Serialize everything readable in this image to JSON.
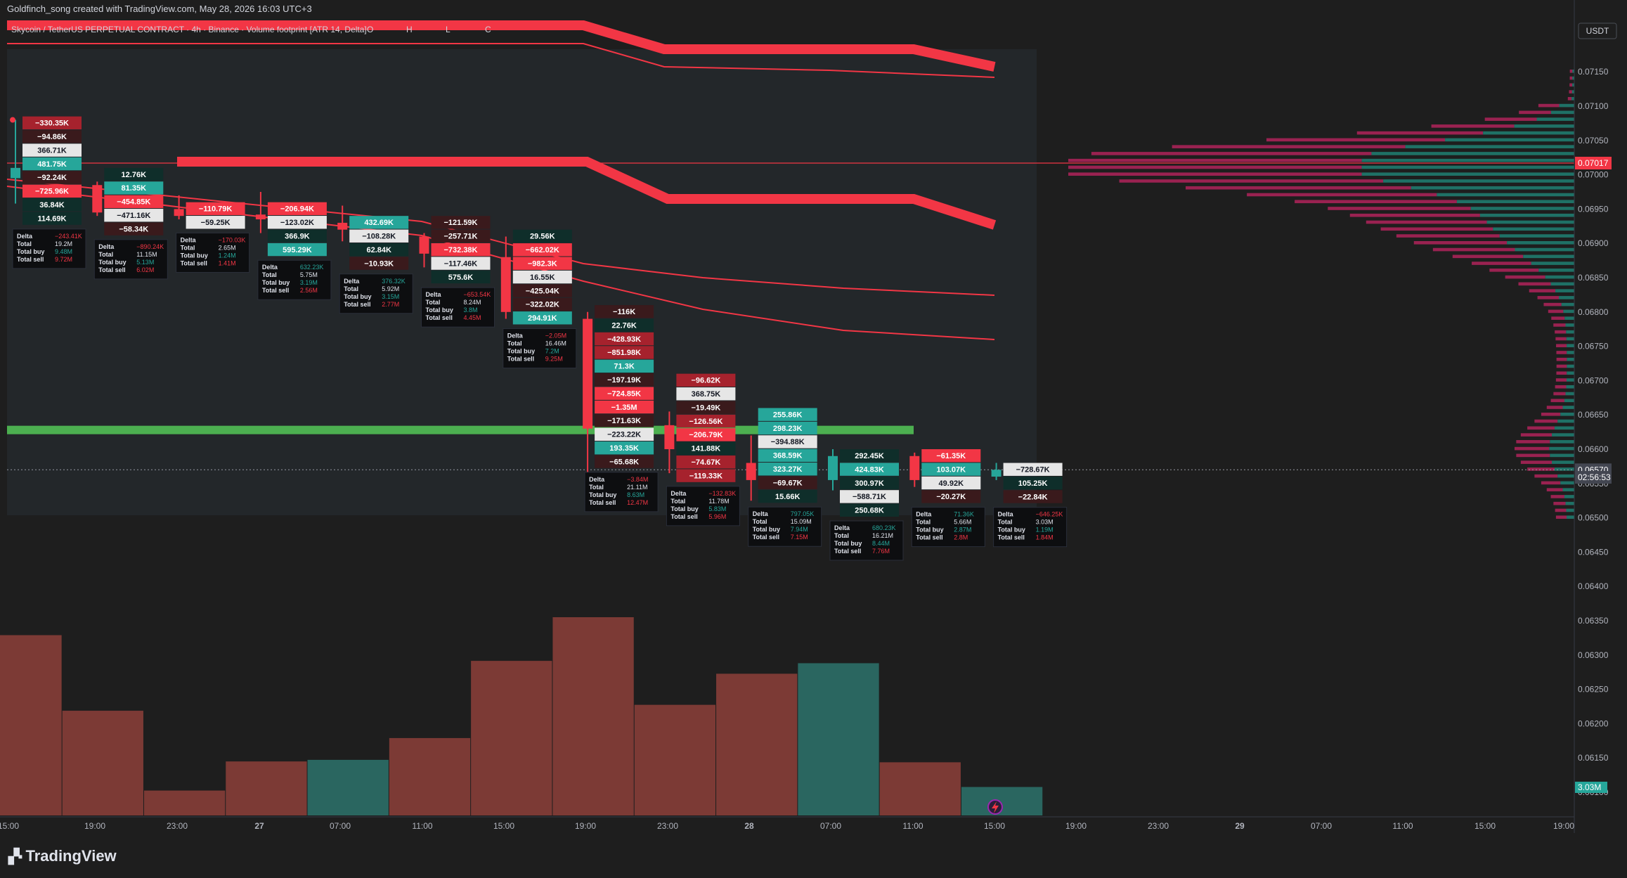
{
  "header": {
    "created_line": "Goldfinch_song created with TradingView.com, May 28, 2026 16:03 UTC+3",
    "legend": "Skycoin / TetherUS PERPETUAL CONTRACT · 4h · Binance · Volume footprint [ATR 14, Delta]",
    "ohlc_letters": [
      "O",
      "H",
      "L",
      "C"
    ],
    "currency": "USDT"
  },
  "logo": {
    "text": "TradingView"
  },
  "colors": {
    "background": "#1e1e1e",
    "bear": "#f23645",
    "bull": "#26a69a",
    "bear_vol": "#7c3a35",
    "bull_vol": "#2a6660",
    "support_zone": "#4caf50",
    "price_badge": "#f23645",
    "last_badge": "#434651"
  },
  "chart_data": {
    "type": "candlestick-footprint",
    "symbol": "Skycoin / TetherUS PERPETUAL CONTRACT",
    "timeframe": "4h",
    "exchange": "Binance",
    "indicator": "Volume footprint [ATR 14, Delta]",
    "y_axis": {
      "ticks": [
        "0.07150",
        "0.07100",
        "0.07050",
        "0.07000",
        "0.06950",
        "0.06900",
        "0.06850",
        "0.06800",
        "0.06750",
        "0.06700",
        "0.06650",
        "0.06600",
        "0.06550",
        "0.06500",
        "0.06450",
        "0.06400",
        "0.06350",
        "0.06300",
        "0.06250",
        "0.06200",
        "0.06150",
        "0.06100"
      ],
      "range": [
        0.06085,
        0.07193
      ]
    },
    "x_axis": {
      "ticks": [
        "15:00",
        "19:00",
        "23:00",
        "27",
        "07:00",
        "11:00",
        "15:00",
        "19:00",
        "23:00",
        "28",
        "07:00",
        "11:00",
        "15:00",
        "19:00",
        "23:00",
        "29",
        "07:00",
        "11:00",
        "15:00",
        "19:00"
      ]
    },
    "price_labels": [
      {
        "text": "0.07017",
        "value": 0.07017,
        "style": "red"
      },
      {
        "text": "0.06570",
        "value": 0.0657,
        "style": "dark"
      },
      {
        "text": "02:56:53",
        "value": 0.06559,
        "style": "dark"
      }
    ],
    "volume_label": "3.03M",
    "candles": [
      {
        "o": 0.06995,
        "h": 0.0708,
        "l": 0.06958,
        "c": 0.0701
      },
      {
        "o": 0.06985,
        "h": 0.0699,
        "l": 0.0694,
        "c": 0.06945
      },
      {
        "o": 0.0695,
        "h": 0.0697,
        "l": 0.06935,
        "c": 0.0694
      },
      {
        "o": 0.06942,
        "h": 0.06975,
        "l": 0.06915,
        "c": 0.06935
      },
      {
        "o": 0.0693,
        "h": 0.06955,
        "l": 0.06903,
        "c": 0.0692
      },
      {
        "o": 0.0691,
        "h": 0.06915,
        "l": 0.06865,
        "c": 0.06885
      },
      {
        "o": 0.0688,
        "h": 0.0691,
        "l": 0.0679,
        "c": 0.068
      },
      {
        "o": 0.0679,
        "h": 0.068,
        "l": 0.0656,
        "c": 0.0663
      },
      {
        "o": 0.06635,
        "h": 0.06655,
        "l": 0.06565,
        "c": 0.066
      },
      {
        "o": 0.0658,
        "h": 0.0662,
        "l": 0.06525,
        "c": 0.06555
      },
      {
        "o": 0.06555,
        "h": 0.066,
        "l": 0.0654,
        "c": 0.0659
      },
      {
        "o": 0.0659,
        "h": 0.06595,
        "l": 0.06545,
        "c": 0.06555
      },
      {
        "o": 0.0656,
        "h": 0.0658,
        "l": 0.06555,
        "c": 0.0657
      }
    ],
    "footprint": [
      {
        "top": 0.07085,
        "rows": [
          {
            "v": "−330.35K",
            "c": "br"
          },
          {
            "v": "−94.86K",
            "c": "dr"
          },
          {
            "v": "366.71K",
            "c": "w"
          },
          {
            "v": "481.75K",
            "c": "g"
          },
          {
            "v": "−92.24K",
            "c": "dr"
          },
          {
            "v": "−725.96K",
            "c": "r"
          },
          {
            "v": "36.84K",
            "c": "dg"
          },
          {
            "v": "114.69K",
            "c": "dg"
          }
        ],
        "stats": {
          "delta": "−243.41K",
          "total": "19.2M",
          "buy": "9.48M",
          "sell": "9.72M"
        },
        "dpos": false
      },
      {
        "top": 0.0701,
        "rows": [
          {
            "v": "12.76K",
            "c": "dg"
          },
          {
            "v": "81.35K",
            "c": "g"
          },
          {
            "v": "−454.85K",
            "c": "r"
          },
          {
            "v": "−471.16K",
            "c": "w"
          },
          {
            "v": "−58.34K",
            "c": "dr"
          }
        ],
        "stats": {
          "delta": "−890.24K",
          "total": "11.15M",
          "buy": "5.13M",
          "sell": "6.02M"
        },
        "dpos": false
      },
      {
        "top": 0.0696,
        "rows": [
          {
            "v": "−110.79K",
            "c": "r"
          },
          {
            "v": "−59.25K",
            "c": "w"
          }
        ],
        "stats": {
          "delta": "−170.03K",
          "total": "2.65M",
          "buy": "1.24M",
          "sell": "1.41M"
        },
        "dpos": false
      },
      {
        "top": 0.0696,
        "rows": [
          {
            "v": "−206.94K",
            "c": "r"
          },
          {
            "v": "−123.02K",
            "c": "w"
          },
          {
            "v": "366.9K",
            "c": "dg"
          },
          {
            "v": "595.29K",
            "c": "g"
          }
        ],
        "stats": {
          "delta": "632.23K",
          "total": "5.75M",
          "buy": "3.19M",
          "sell": "2.56M"
        },
        "dpos": true
      },
      {
        "top": 0.0694,
        "rows": [
          {
            "v": "432.69K",
            "c": "g"
          },
          {
            "v": "−108.28K",
            "c": "w"
          },
          {
            "v": "62.84K",
            "c": "dg"
          },
          {
            "v": "−10.93K",
            "c": "dr"
          }
        ],
        "stats": {
          "delta": "376.32K",
          "total": "5.92M",
          "buy": "3.15M",
          "sell": "2.77M"
        },
        "dpos": true
      },
      {
        "top": 0.0694,
        "rows": [
          {
            "v": "−121.59K",
            "c": "dr"
          },
          {
            "v": "−257.71K",
            "c": "dr"
          },
          {
            "v": "−732.38K",
            "c": "r"
          },
          {
            "v": "−117.46K",
            "c": "w"
          },
          {
            "v": "575.6K",
            "c": "dg"
          }
        ],
        "stats": {
          "delta": "−653.54K",
          "total": "8.24M",
          "buy": "3.8M",
          "sell": "4.45M"
        },
        "dpos": false
      },
      {
        "top": 0.0692,
        "rows": [
          {
            "v": "29.56K",
            "c": "dg"
          },
          {
            "v": "−662.02K",
            "c": "r"
          },
          {
            "v": "−982.3K",
            "c": "r"
          },
          {
            "v": "16.55K",
            "c": "w"
          },
          {
            "v": "−425.04K",
            "c": "dr"
          },
          {
            "v": "−322.02K",
            "c": "dr"
          },
          {
            "v": "294.91K",
            "c": "g"
          }
        ],
        "stats": {
          "delta": "−2.05M",
          "total": "16.46M",
          "buy": "7.2M",
          "sell": "9.25M"
        },
        "dpos": false
      },
      {
        "top": 0.0681,
        "rows": [
          {
            "v": "−116K",
            "c": "dr"
          },
          {
            "v": "22.76K",
            "c": "dg"
          },
          {
            "v": "−428.93K",
            "c": "br"
          },
          {
            "v": "−851.98K",
            "c": "br"
          },
          {
            "v": "71.3K",
            "c": "g"
          },
          {
            "v": "−197.19K",
            "c": "dr"
          },
          {
            "v": "−724.85K",
            "c": "r"
          },
          {
            "v": "−1.35M",
            "c": "r"
          },
          {
            "v": "−171.63K",
            "c": "dr"
          },
          {
            "v": "−223.22K",
            "c": "w"
          },
          {
            "v": "193.35K",
            "c": "g"
          },
          {
            "v": "−65.68K",
            "c": "dr"
          }
        ],
        "stats": {
          "delta": "−3.84M",
          "total": "21.11M",
          "buy": "8.63M",
          "sell": "12.47M"
        },
        "dpos": false
      },
      {
        "top": 0.0671,
        "rows": [
          {
            "v": "−96.62K",
            "c": "br"
          },
          {
            "v": "368.75K",
            "c": "w"
          },
          {
            "v": "−19.49K",
            "c": "dr"
          },
          {
            "v": "−126.56K",
            "c": "br"
          },
          {
            "v": "−206.79K",
            "c": "r"
          },
          {
            "v": "141.88K",
            "c": "dg"
          },
          {
            "v": "−74.67K",
            "c": "br"
          },
          {
            "v": "−119.33K",
            "c": "br"
          }
        ],
        "stats": {
          "delta": "−132.83K",
          "total": "11.78M",
          "buy": "5.83M",
          "sell": "5.96M"
        },
        "dpos": false
      },
      {
        "top": 0.0666,
        "rows": [
          {
            "v": "255.86K",
            "c": "g"
          },
          {
            "v": "298.23K",
            "c": "g"
          },
          {
            "v": "−394.88K",
            "c": "w"
          },
          {
            "v": "368.59K",
            "c": "g"
          },
          {
            "v": "323.27K",
            "c": "g"
          },
          {
            "v": "−69.67K",
            "c": "dr"
          },
          {
            "v": "15.66K",
            "c": "dg"
          }
        ],
        "stats": {
          "delta": "797.05K",
          "total": "15.09M",
          "buy": "7.94M",
          "sell": "7.15M"
        },
        "dpos": true
      },
      {
        "top": 0.066,
        "rows": [
          {
            "v": "292.45K",
            "c": "dg"
          },
          {
            "v": "424.83K",
            "c": "g"
          },
          {
            "v": "300.97K",
            "c": "dg"
          },
          {
            "v": "−588.71K",
            "c": "w"
          },
          {
            "v": "250.68K",
            "c": "dg"
          }
        ],
        "stats": {
          "delta": "680.23K",
          "total": "16.21M",
          "buy": "8.44M",
          "sell": "7.76M"
        },
        "dpos": true
      },
      {
        "top": 0.066,
        "rows": [
          {
            "v": "−61.35K",
            "c": "r"
          },
          {
            "v": "103.07K",
            "c": "g"
          },
          {
            "v": "49.92K",
            "c": "w"
          },
          {
            "v": "−20.27K",
            "c": "dr"
          }
        ],
        "stats": {
          "delta": "71.36K",
          "total": "5.66M",
          "buy": "2.87M",
          "sell": "2.8M"
        },
        "dpos": true
      },
      {
        "top": 0.0658,
        "rows": [
          {
            "v": "−728.67K",
            "c": "w"
          },
          {
            "v": "105.25K",
            "c": "dg"
          },
          {
            "v": "−22.84K",
            "c": "dr"
          }
        ],
        "stats": {
          "delta": "−646.25K",
          "total": "3.03M",
          "buy": "1.19M",
          "sell": "1.84M"
        },
        "dpos": false
      }
    ],
    "stat_labels": {
      "delta": "Delta",
      "total": "Total",
      "buy": "Total buy",
      "sell": "Total sell"
    },
    "volume_bars": [
      {
        "v": 19.2,
        "bull": false
      },
      {
        "v": 11.15,
        "bull": false
      },
      {
        "v": 2.65,
        "bull": false
      },
      {
        "v": 5.75,
        "bull": false
      },
      {
        "v": 5.92,
        "bull": true
      },
      {
        "v": 8.24,
        "bull": false
      },
      {
        "v": 16.46,
        "bull": false
      },
      {
        "v": 21.11,
        "bull": false
      },
      {
        "v": 11.78,
        "bull": false
      },
      {
        "v": 15.09,
        "bull": false
      },
      {
        "v": 16.21,
        "bull": true
      },
      {
        "v": 5.66,
        "bull": false
      },
      {
        "v": 3.03,
        "bull": true
      }
    ],
    "horizontal_lines": [
      {
        "value": 0.07017,
        "style": "red-thin"
      },
      {
        "value": 0.0657,
        "style": "dotted"
      }
    ],
    "support_zone": {
      "value": 0.06628
    }
  }
}
